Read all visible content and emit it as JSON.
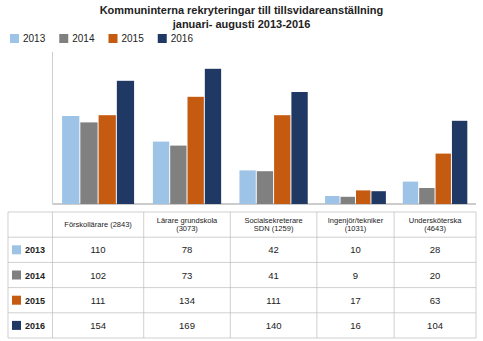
{
  "chart_data": {
    "type": "bar",
    "title": "Kommuninterna rekryteringar till tillsvidareanställning",
    "subtitle": "januari- augusti 2013-2016",
    "categories": [
      "Förskollärare  (2843)",
      "Lärare grundskola\n(3073)",
      "Socialsekreterare\nSDN (1259)",
      "Ingenjör/tekniker\n(1031)",
      "Undersköterska\n(4643)"
    ],
    "series": [
      {
        "name": "2013",
        "color": "#9DC3E6",
        "values": [
          110,
          78,
          42,
          10,
          28
        ]
      },
      {
        "name": "2014",
        "color": "#808080",
        "values": [
          102,
          73,
          41,
          9,
          20
        ]
      },
      {
        "name": "2015",
        "color": "#C55A11",
        "values": [
          111,
          134,
          111,
          17,
          63
        ]
      },
      {
        "name": "2016",
        "color": "#1F3864",
        "values": [
          154,
          169,
          140,
          16,
          104
        ]
      }
    ],
    "ylim": [
      0,
      190
    ],
    "tick_labels": false,
    "grid": false,
    "legend": "top-left"
  }
}
